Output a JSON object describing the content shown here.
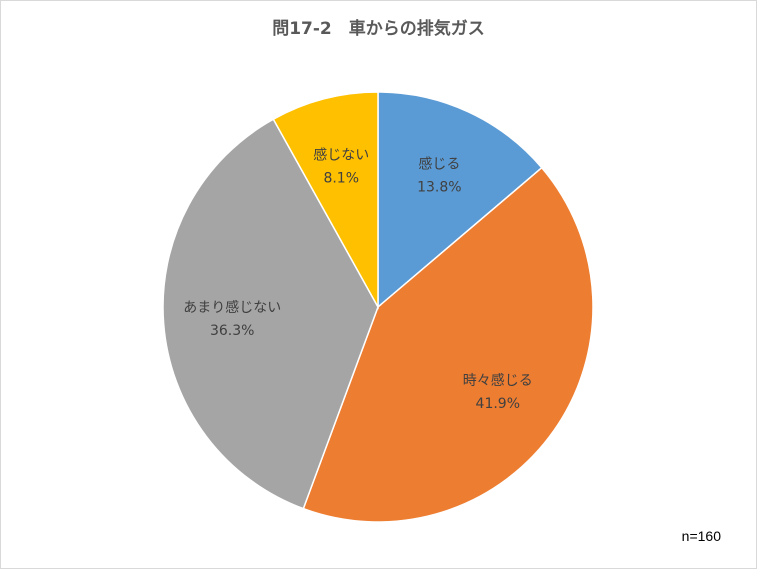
{
  "chart_data": {
    "type": "pie",
    "title": "問17-2　車からの排気ガス",
    "note": "n=160",
    "start_angle_deg": 0,
    "direction": "clockwise",
    "slices": [
      {
        "label": "感じる",
        "value": 13.8,
        "value_label": "13.8%",
        "color": "#5B9BD5"
      },
      {
        "label": "時々感じる",
        "value": 41.9,
        "value_label": "41.9%",
        "color": "#ED7D31"
      },
      {
        "label": "あまり感じない",
        "value": 36.3,
        "value_label": "36.3%",
        "color": "#A5A5A5"
      },
      {
        "label": "感じない",
        "value": 8.1,
        "value_label": "8.1%",
        "color": "#FFC000"
      }
    ]
  }
}
